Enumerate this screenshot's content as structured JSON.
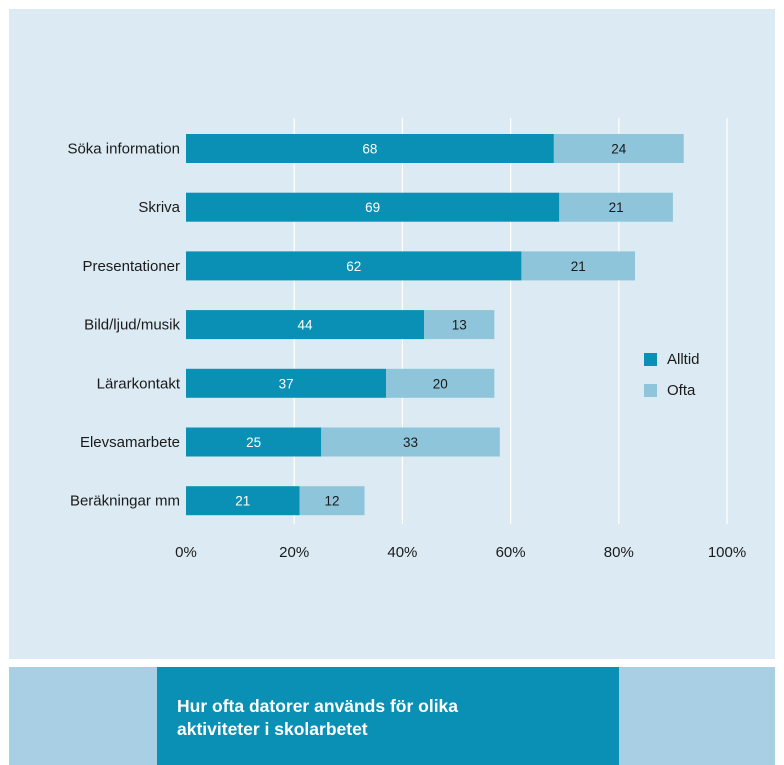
{
  "chart_data": {
    "type": "bar",
    "orientation": "horizontal",
    "stacked": true,
    "categories": [
      "Söka information",
      "Skriva",
      "Presentationer",
      "Bild/ljud/musik",
      "Lärarkontakt",
      "Elevsamarbete",
      "Beräkningar mm"
    ],
    "series": [
      {
        "name": "Alltid",
        "values": [
          68,
          69,
          62,
          44,
          37,
          25,
          21
        ],
        "color": "#0a90b4"
      },
      {
        "name": "Ofta",
        "values": [
          24,
          21,
          21,
          13,
          20,
          33,
          12
        ],
        "color": "#8ec5da"
      }
    ],
    "xlim": [
      0,
      100
    ],
    "xticks": [
      "0%",
      "20%",
      "40%",
      "60%",
      "80%",
      "100%"
    ],
    "grid": true,
    "legend": "right"
  },
  "caption": {
    "line1": "Hur ofta datorer används för olika",
    "line2": "aktiviteter i skolarbetet"
  },
  "colors": {
    "panel_bg": "#dcebf3",
    "footer_bg": "#a8cfe3",
    "caption_bg": "#0a90b4"
  }
}
